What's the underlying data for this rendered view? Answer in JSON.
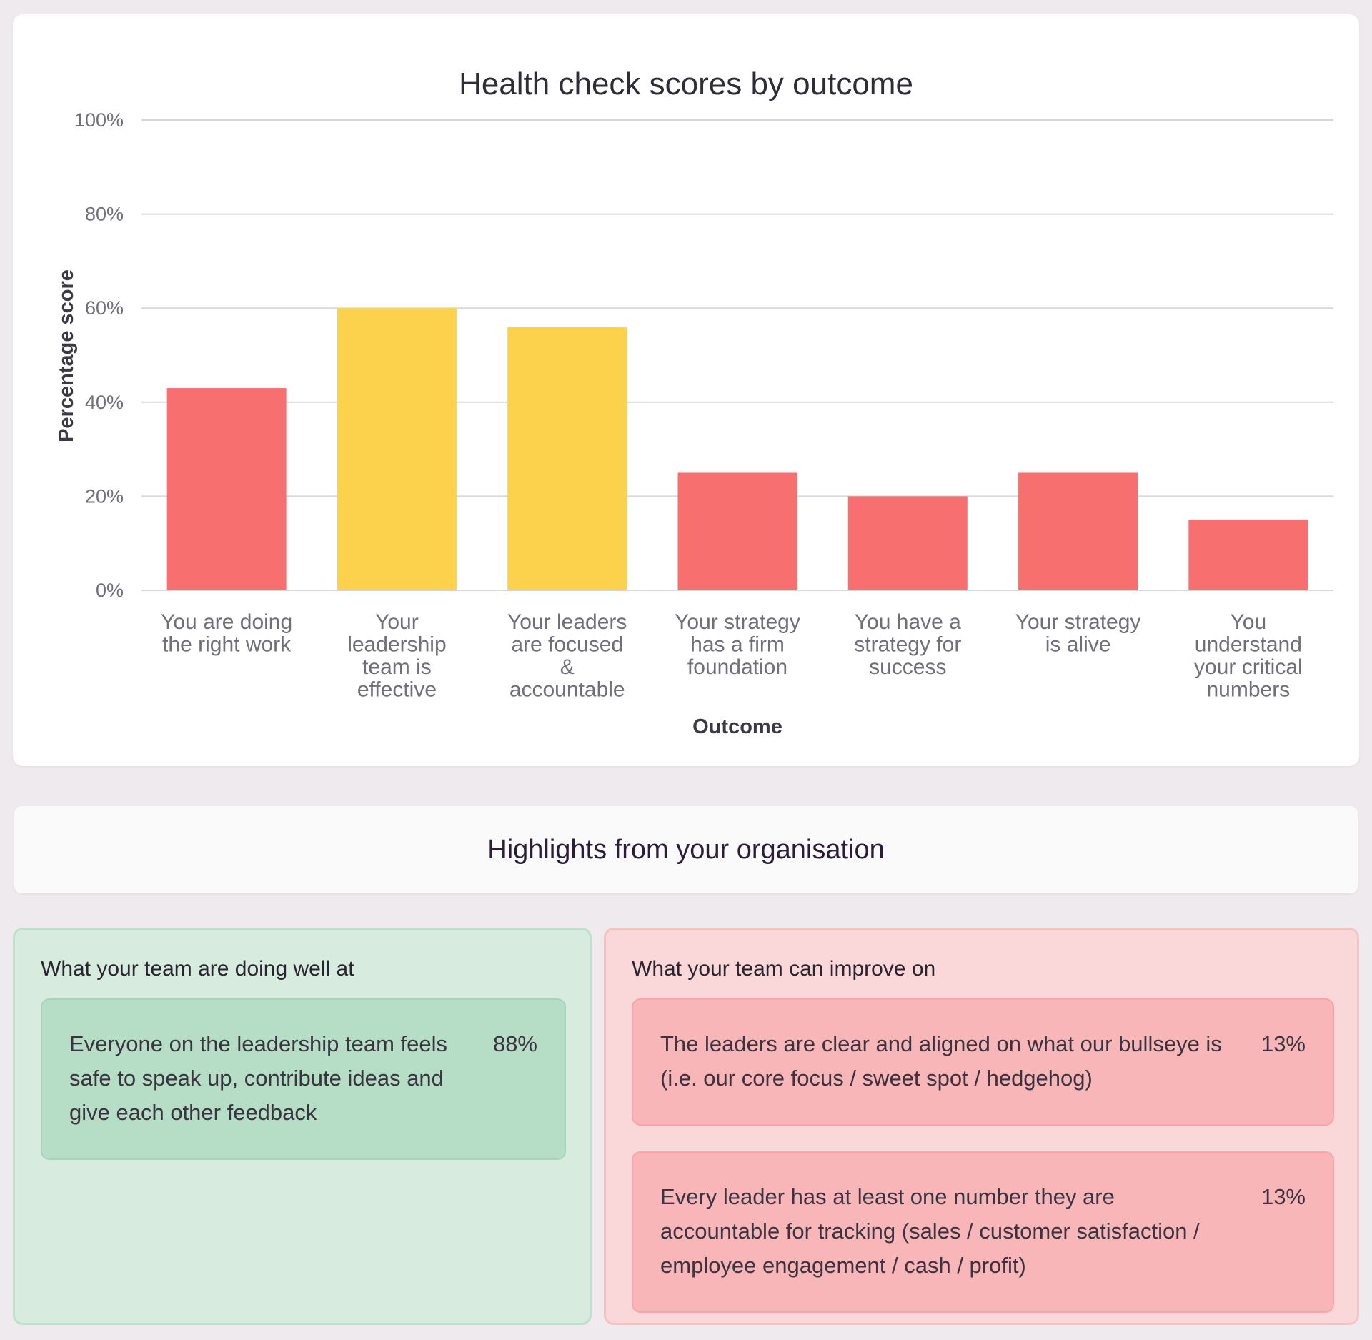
{
  "chart_data": {
    "type": "bar",
    "title": "Health check scores by outcome",
    "xlabel": "Outcome",
    "ylabel": "Percentage score",
    "ylim": [
      0,
      100
    ],
    "yticks": [
      "0%",
      "20%",
      "40%",
      "60%",
      "80%",
      "100%"
    ],
    "grid": true,
    "categories": [
      [
        "You are doing",
        "the right work"
      ],
      [
        "Your",
        "leadership",
        "team is",
        "effective"
      ],
      [
        "Your leaders",
        "are focused",
        "&",
        "accountable"
      ],
      [
        "Your strategy",
        "has a firm",
        "foundation"
      ],
      [
        "You have a",
        "strategy for",
        "success"
      ],
      [
        "Your strategy",
        "is alive"
      ],
      [
        "You",
        "understand",
        "your critical",
        "numbers"
      ]
    ],
    "values": [
      43,
      60,
      56,
      25,
      20,
      25,
      15
    ],
    "colors": [
      "#f76f6f",
      "#fcd24c",
      "#fcd24c",
      "#f76f6f",
      "#f76f6f",
      "#f76f6f",
      "#f76f6f"
    ]
  },
  "highlights": {
    "title": "Highlights from your organisation",
    "good": {
      "heading": "What your team are doing well at",
      "items": [
        {
          "text": "Everyone on the leadership team feels safe to speak up, contribute ideas and give each other feedback",
          "pct": "88%"
        }
      ],
      "color": "#d7ebdf"
    },
    "improve": {
      "heading": "What your team can improve on",
      "items": [
        {
          "text": "The leaders are clear and aligned on what our bullseye is (i.e. our core focus / sweet spot / hedgehog)",
          "pct": "13%"
        },
        {
          "text": "Every leader has at least one number they are accountable for tracking (sales / customer satisfaction / employee engagement / cash / profit)",
          "pct": "13%"
        }
      ],
      "color": "#fad7d8"
    }
  }
}
